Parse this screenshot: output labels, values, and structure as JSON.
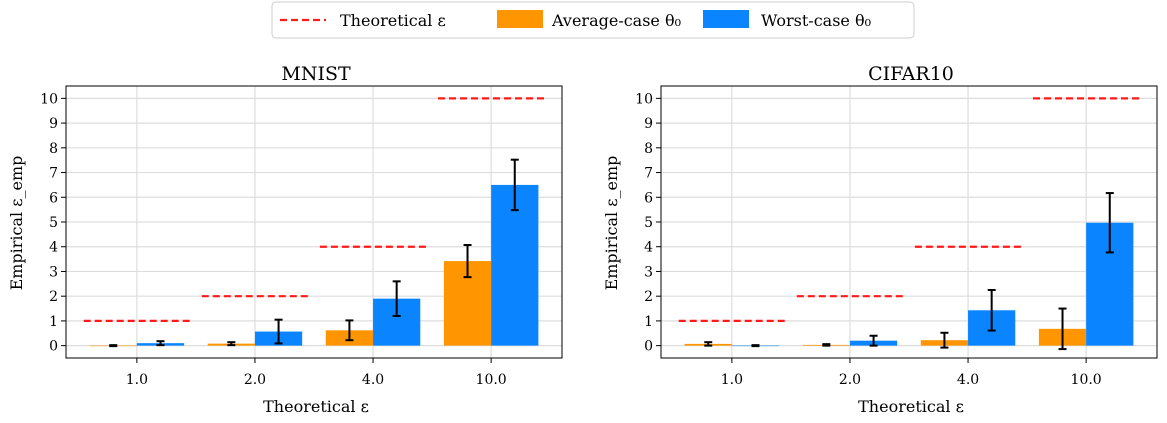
{
  "legend": {
    "theoretical": "Theoretical ε",
    "average": "Average-case θ₀",
    "worst": "Worst-case θ₀"
  },
  "colors": {
    "theoretical": "#ff1a1a",
    "average": "#ff9500",
    "worst": "#0a84ff",
    "grid": "#dddddd"
  },
  "chart_data": [
    {
      "type": "bar",
      "title": "MNIST",
      "xlabel": "Theoretical ε",
      "ylabel": "Empirical ε_emp",
      "categories": [
        "1.0",
        "2.0",
        "4.0",
        "10.0"
      ],
      "theoretical": [
        1,
        2,
        4,
        10
      ],
      "ylim": [
        -0.5,
        10.5
      ],
      "yticks": [
        0,
        1,
        2,
        3,
        4,
        5,
        6,
        7,
        8,
        9,
        10
      ],
      "grid": true,
      "legend_position": "top-center",
      "series": [
        {
          "name": "Average-case θ₀",
          "values": [
            0.0,
            0.08,
            0.62,
            3.42
          ],
          "errors": [
            0.02,
            0.06,
            0.4,
            0.65
          ]
        },
        {
          "name": "Worst-case θ₀",
          "values": [
            0.1,
            0.57,
            1.9,
            6.5
          ],
          "errors": [
            0.08,
            0.48,
            0.7,
            1.02
          ]
        }
      ]
    },
    {
      "type": "bar",
      "title": "CIFAR10",
      "xlabel": "Theoretical ε",
      "ylabel": "Empirical ε_emp",
      "categories": [
        "1.0",
        "2.0",
        "4.0",
        "10.0"
      ],
      "theoretical": [
        1,
        2,
        4,
        10
      ],
      "ylim": [
        -0.5,
        10.5
      ],
      "yticks": [
        0,
        1,
        2,
        3,
        4,
        5,
        6,
        7,
        8,
        9,
        10
      ],
      "grid": true,
      "legend_position": "top-center",
      "series": [
        {
          "name": "Average-case θ₀",
          "values": [
            0.07,
            0.03,
            0.22,
            0.68
          ],
          "errors": [
            0.07,
            0.03,
            0.3,
            0.82
          ]
        },
        {
          "name": "Worst-case θ₀",
          "values": [
            0.0,
            0.2,
            1.43,
            4.97
          ],
          "errors": [
            0.02,
            0.2,
            0.82,
            1.2
          ]
        }
      ]
    }
  ]
}
